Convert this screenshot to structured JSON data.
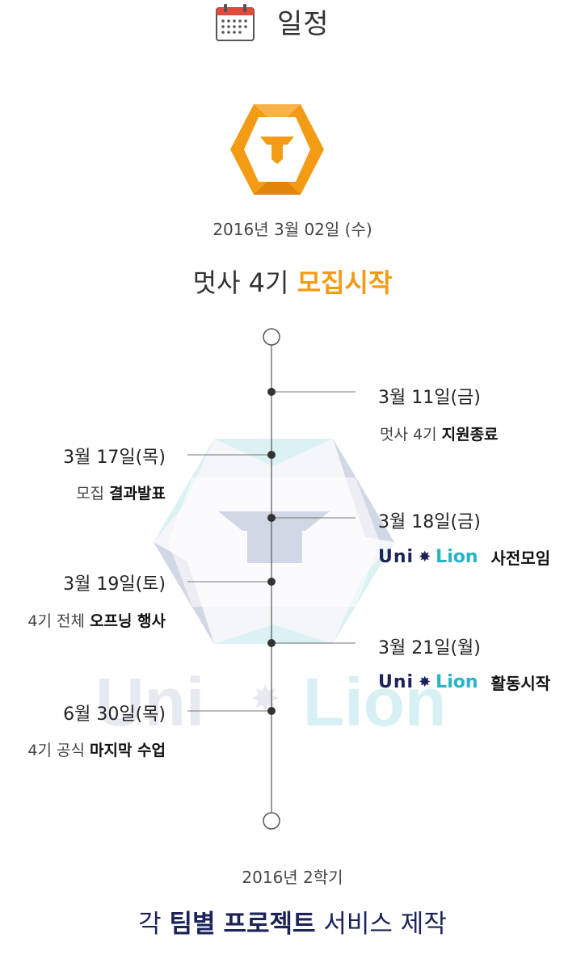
{
  "header": {
    "title": "일정",
    "icon": "calendar-icon"
  },
  "hero": {
    "date": "2016년 3월 02일 (수)",
    "headline_prefix": "멋사 4기 ",
    "headline_strong": "모집시작",
    "accent_color": "#f39b14"
  },
  "events": [
    {
      "date": "3월 11일(금)",
      "desc_prefix": "멋사 4기 ",
      "desc_strong": "지원종료"
    },
    {
      "date": "3월 17일(목)",
      "desc_prefix": "모집 ",
      "desc_strong": "결과발표"
    },
    {
      "date": "3월 18일(금)",
      "logo_uni": "Uni",
      "logo_lion": "Lion",
      "desc_strong": "사전모임"
    },
    {
      "date": "3월 19일(토)",
      "desc_prefix": "4기 전체 ",
      "desc_strong": "오프닝 행사"
    },
    {
      "date": "3월 21일(월)",
      "logo_uni": "Uni",
      "logo_lion": "Lion",
      "desc_strong": "활동시작"
    },
    {
      "date": "6월 30일(목)",
      "desc_prefix": "4기 공식 ",
      "desc_strong": "마지막 수업"
    }
  ],
  "watermark": {
    "uni": "Uni",
    "lion": "Lion"
  },
  "footer": {
    "sub": "2016년 2학기",
    "main_prefix": "각 ",
    "main_strong1": "팀별",
    "main_strong2": "프로젝트",
    "main_suffix": " 서비스 제작",
    "color": "#1b2358"
  }
}
